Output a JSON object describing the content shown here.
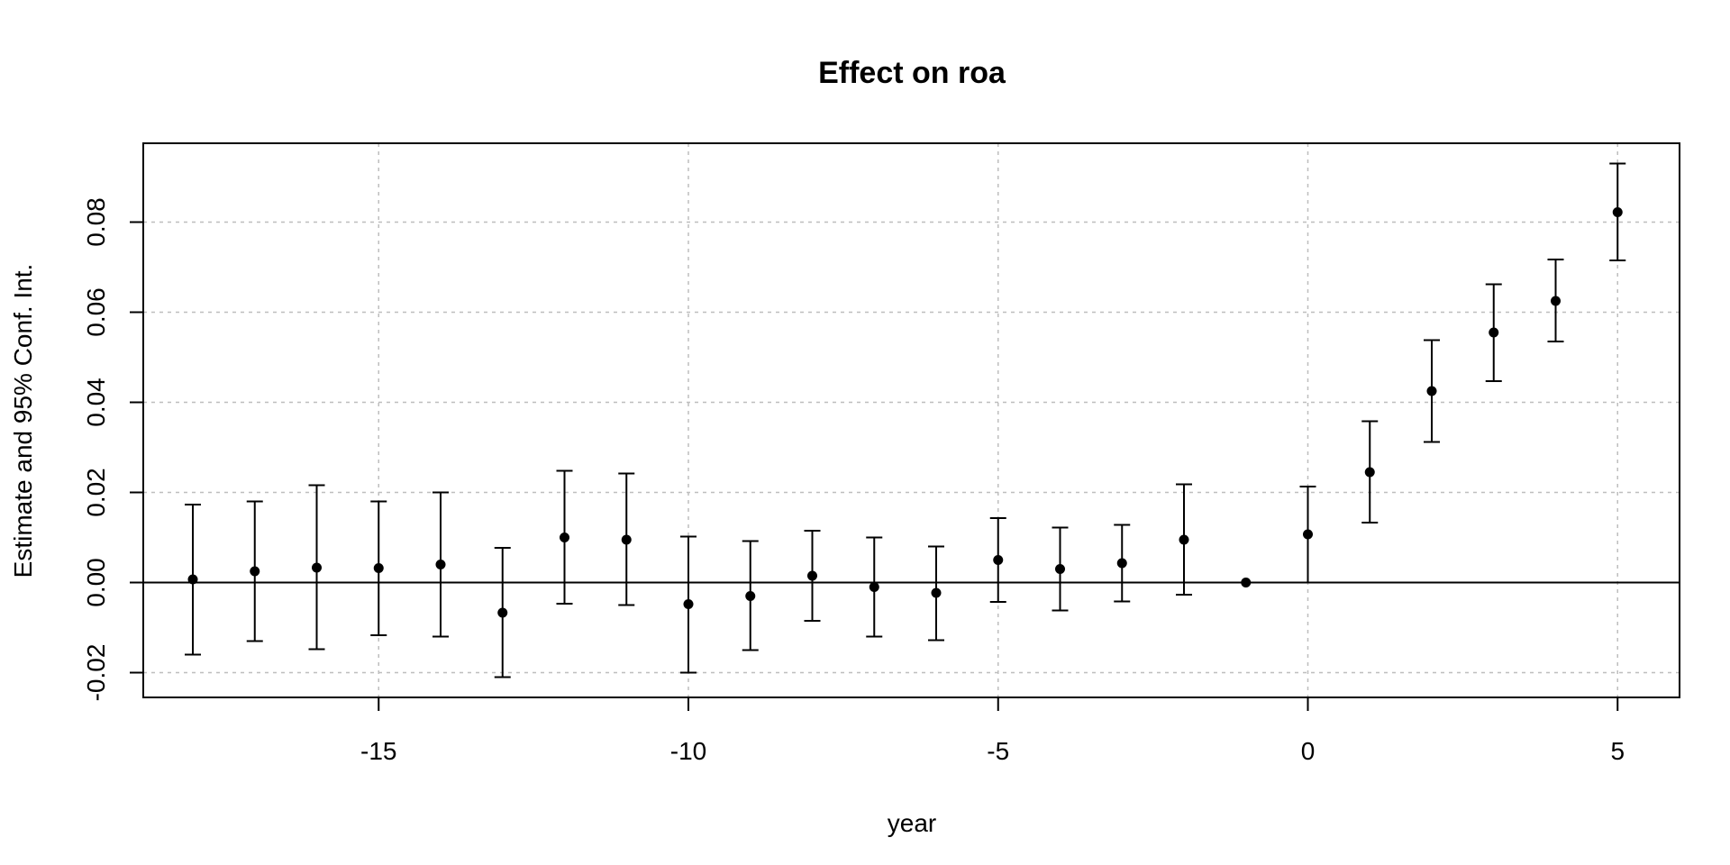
{
  "chart_data": {
    "type": "scatter",
    "title": "Effect on roa",
    "xlabel": "year",
    "ylabel": "Estimate and 95% Conf. Int.",
    "xlim": [
      -18.8,
      6.0
    ],
    "ylim": [
      -0.0255,
      0.0975
    ],
    "x_ticks": [
      -15,
      -10,
      -5,
      0,
      5
    ],
    "x_tick_labels": [
      "-15",
      "-10",
      "-5",
      "0",
      "5"
    ],
    "y_ticks": [
      -0.02,
      0.0,
      0.02,
      0.04,
      0.06,
      0.08
    ],
    "y_tick_labels": [
      "-0.02",
      "0.00",
      "0.02",
      "0.04",
      "0.06",
      "0.08"
    ],
    "grid": true,
    "reference_line_y": 0,
    "point_color": "#000000",
    "grid_color": "#bebebe",
    "points": [
      {
        "x": -18,
        "estimate": 0.0007,
        "lower": -0.016,
        "upper": 0.0173
      },
      {
        "x": -17,
        "estimate": 0.0025,
        "lower": -0.013,
        "upper": 0.018
      },
      {
        "x": -16,
        "estimate": 0.0033,
        "lower": -0.0148,
        "upper": 0.0216
      },
      {
        "x": -15,
        "estimate": 0.0032,
        "lower": -0.0117,
        "upper": 0.018
      },
      {
        "x": -14,
        "estimate": 0.004,
        "lower": -0.012,
        "upper": 0.02
      },
      {
        "x": -13,
        "estimate": -0.0067,
        "lower": -0.021,
        "upper": 0.0077
      },
      {
        "x": -12,
        "estimate": 0.01,
        "lower": -0.0047,
        "upper": 0.0248
      },
      {
        "x": -11,
        "estimate": 0.0095,
        "lower": -0.005,
        "upper": 0.0242
      },
      {
        "x": -10,
        "estimate": -0.0048,
        "lower": -0.02,
        "upper": 0.0102
      },
      {
        "x": -9,
        "estimate": -0.003,
        "lower": -0.015,
        "upper": 0.0092
      },
      {
        "x": -8,
        "estimate": 0.0015,
        "lower": -0.0085,
        "upper": 0.0115
      },
      {
        "x": -7,
        "estimate": -0.001,
        "lower": -0.012,
        "upper": 0.01
      },
      {
        "x": -6,
        "estimate": -0.0023,
        "lower": -0.0128,
        "upper": 0.008
      },
      {
        "x": -5,
        "estimate": 0.005,
        "lower": -0.0043,
        "upper": 0.0143
      },
      {
        "x": -4,
        "estimate": 0.003,
        "lower": -0.0062,
        "upper": 0.0122
      },
      {
        "x": -3,
        "estimate": 0.0043,
        "lower": -0.0042,
        "upper": 0.0128
      },
      {
        "x": -2,
        "estimate": 0.0095,
        "lower": -0.0027,
        "upper": 0.0218
      },
      {
        "x": -1,
        "estimate": 0.0,
        "lower": 0.0,
        "upper": 0.0
      },
      {
        "x": 0,
        "estimate": 0.0107,
        "lower": 0.0,
        "upper": 0.0213
      },
      {
        "x": 1,
        "estimate": 0.0245,
        "lower": 0.0133,
        "upper": 0.0358
      },
      {
        "x": 2,
        "estimate": 0.0425,
        "lower": 0.0312,
        "upper": 0.0538
      },
      {
        "x": 3,
        "estimate": 0.0555,
        "lower": 0.0447,
        "upper": 0.0662
      },
      {
        "x": 4,
        "estimate": 0.0625,
        "lower": 0.0535,
        "upper": 0.0717
      },
      {
        "x": 5,
        "estimate": 0.0822,
        "lower": 0.0715,
        "upper": 0.093
      }
    ]
  }
}
